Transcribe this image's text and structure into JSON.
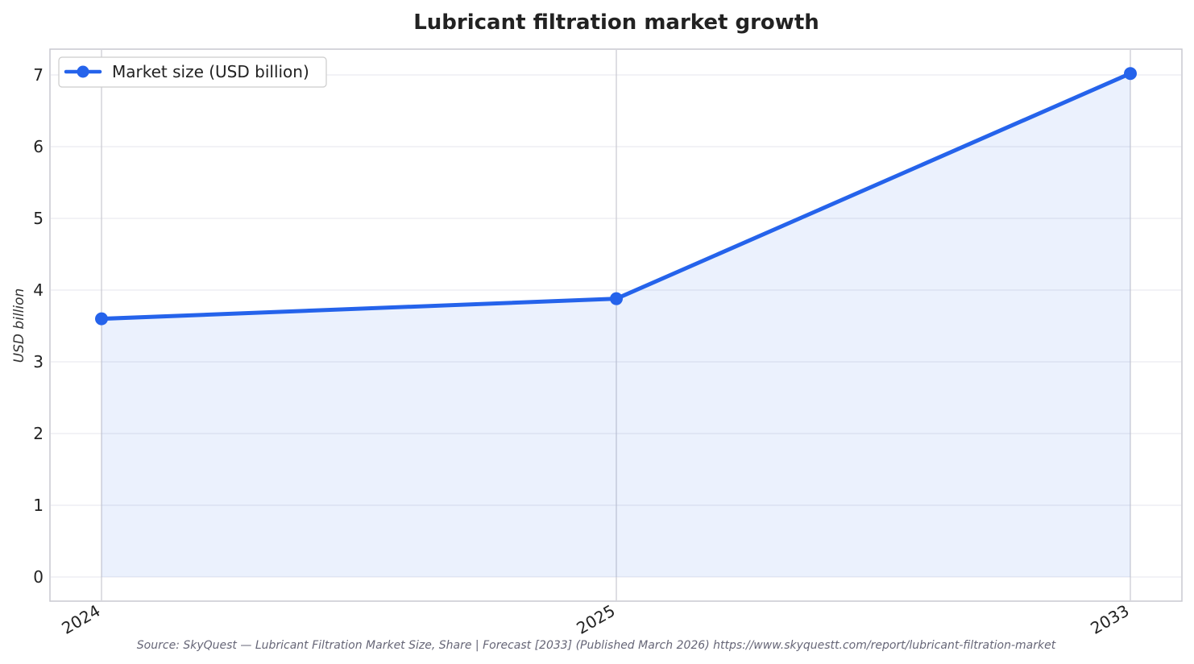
{
  "chart_data": {
    "type": "line",
    "title": "Lubricant filtration market growth",
    "xlabel": "",
    "ylabel": "USD billion",
    "categories": [
      "2024",
      "2025",
      "2033"
    ],
    "series": [
      {
        "name": "Market size (USD billion)",
        "values": [
          3.6,
          3.88,
          7.02
        ],
        "color": "#2563eb"
      }
    ],
    "area_fill": "#2563eb",
    "ylim": [
      0,
      7
    ],
    "yticks": [
      "0",
      "1",
      "2",
      "3",
      "4",
      "5",
      "6",
      "7"
    ],
    "grid": true,
    "legend": "top-left",
    "source": "Source: SkyQuest — Lubricant Filtration Market Size, Share | Forecast [2033] (Published March 2026) https://www.skyquestt.com/report/lubricant-filtration-market"
  }
}
